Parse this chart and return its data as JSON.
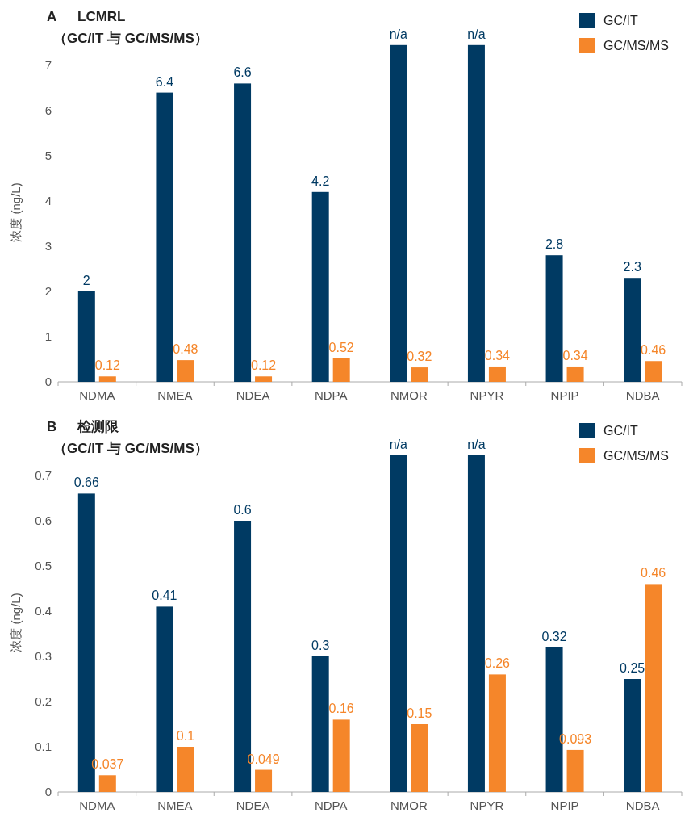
{
  "chart_data": [
    {
      "type": "bar",
      "annotations": [
        "A"
      ],
      "title": "LCMRL",
      "subtitle": "（GC/IT 与 GC/MS/MS）",
      "ylabel": "浓度 (ng/L)",
      "categories": [
        "NDMA",
        "NMEA",
        "NDEA",
        "NDPA",
        "NMOR",
        "NPYR",
        "NPIP",
        "NDBA"
      ],
      "series": [
        {
          "name": "GC/IT",
          "color": "#003a63",
          "values": [
            2,
            6.4,
            6.6,
            4.2,
            7.45,
            7.45,
            2.8,
            2.3
          ],
          "value_labels": [
            "2",
            "6.4",
            "6.6",
            "4.2",
            "n/a",
            "n/a",
            "2.8",
            "2.3"
          ]
        },
        {
          "name": "GC/MS/MS",
          "color": "#f5862a",
          "values": [
            0.12,
            0.48,
            0.12,
            0.52,
            0.32,
            0.34,
            0.34,
            0.46
          ],
          "value_labels": [
            "0.12",
            "0.48",
            "0.12",
            "0.52",
            "0.32",
            "0.34",
            "0.34",
            "0.46"
          ]
        }
      ],
      "ylim": [
        0,
        7.5
      ],
      "yticks": [
        0,
        1,
        2,
        3,
        4,
        5,
        6,
        7
      ],
      "legend": "top right"
    },
    {
      "type": "bar",
      "annotations": [
        "B"
      ],
      "title": "检测限",
      "subtitle": "（GC/IT 与 GC/MS/MS）",
      "ylabel": "浓度 (ng/L)",
      "categories": [
        "NDMA",
        "NMEA",
        "NDEA",
        "NDPA",
        "NMOR",
        "NPYR",
        "NPIP",
        "NDBA"
      ],
      "series": [
        {
          "name": "GC/IT",
          "color": "#003a63",
          "values": [
            0.66,
            0.41,
            0.6,
            0.3,
            0.745,
            0.745,
            0.32,
            0.25
          ],
          "value_labels": [
            "0.66",
            "0.41",
            "0.6",
            "0.3",
            "n/a",
            "n/a",
            "0.32",
            "0.25"
          ]
        },
        {
          "name": "GC/MS/MS",
          "color": "#f5862a",
          "values": [
            0.037,
            0.1,
            0.049,
            0.16,
            0.15,
            0.26,
            0.093,
            0.46
          ],
          "value_labels": [
            "0.037",
            "0.1",
            "0.049",
            "0.16",
            "0.15",
            "0.26",
            "0.093",
            "0.46"
          ]
        }
      ],
      "ylim": [
        0,
        0.75
      ],
      "yticks": [
        0,
        0.1,
        0.2,
        0.3,
        0.4,
        0.5,
        0.6,
        0.7
      ],
      "legend": "top right"
    }
  ]
}
